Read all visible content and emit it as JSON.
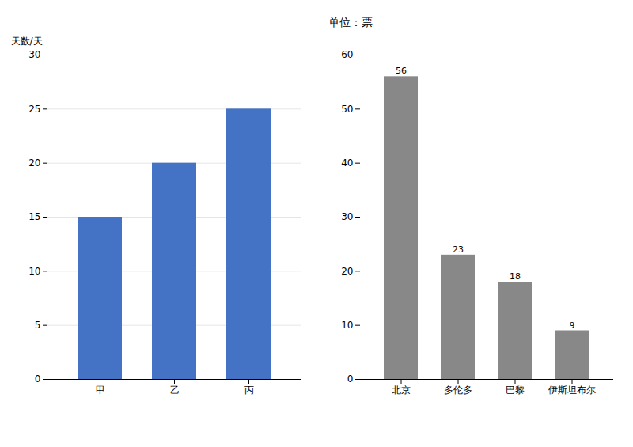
{
  "chart_data": [
    {
      "type": "bar",
      "ylabel": "天数/天",
      "categories": [
        "甲",
        "乙",
        "丙"
      ],
      "values": [
        15,
        20,
        25
      ],
      "color": "#4472C4",
      "ylim": [
        0,
        30
      ],
      "yticks": [
        0,
        5,
        10,
        15,
        20,
        25,
        30
      ],
      "grid": true
    },
    {
      "type": "bar",
      "title": "单位：票",
      "categories": [
        "北京",
        "多伦多",
        "巴黎",
        "伊斯坦布尔"
      ],
      "values": [
        56,
        23,
        18,
        9
      ],
      "color": "#888888",
      "ylim": [
        0,
        60
      ],
      "yticks": [
        0,
        10,
        20,
        30,
        40,
        50,
        60
      ],
      "data_labels": true
    }
  ]
}
